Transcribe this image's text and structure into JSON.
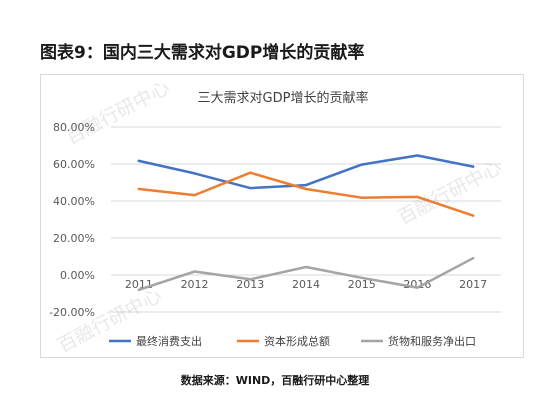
{
  "figure_title": "图表9：国内三大需求对GDP增长的贡献率",
  "source": "数据来源：WIND，百融行研中心整理",
  "watermark": "百融行研中心",
  "colors": {
    "series": [
      "#4472C4",
      "#ED7D31",
      "#A5A5A5"
    ],
    "grid": "#d9d9d9",
    "axis_text": "#595959"
  },
  "chart_data": {
    "type": "line",
    "title": "三大需求对GDP增长的贡献率",
    "x": [
      "2011",
      "2012",
      "2013",
      "2014",
      "2015",
      "2016",
      "2017"
    ],
    "ylim": [
      -0.2,
      0.8
    ],
    "yticks": [
      "80.00%",
      "60.00%",
      "40.00%",
      "20.00%",
      "0.00%",
      "-20.00%"
    ],
    "grid": true,
    "legend_position": "bottom",
    "series": [
      {
        "name": "最终消费支出",
        "values": [
          0.617,
          0.549,
          0.47,
          0.486,
          0.597,
          0.646,
          0.586
        ]
      },
      {
        "name": "资本形成总额",
        "values": [
          0.465,
          0.432,
          0.553,
          0.465,
          0.418,
          0.422,
          0.321
        ]
      },
      {
        "name": "货物和服务净出口",
        "values": [
          -0.08,
          0.019,
          -0.023,
          0.043,
          -0.015,
          -0.068,
          0.091
        ]
      }
    ]
  }
}
